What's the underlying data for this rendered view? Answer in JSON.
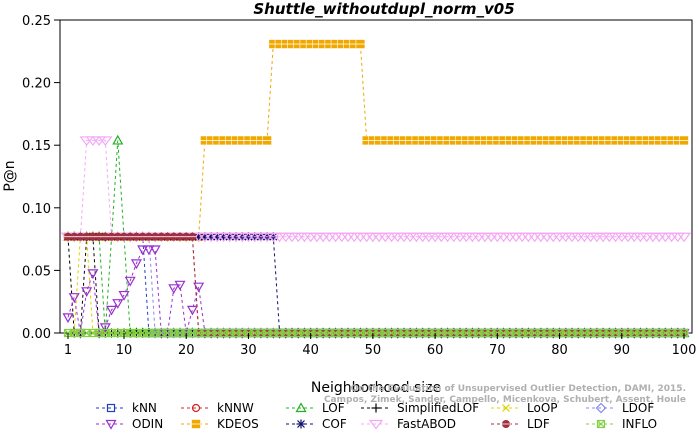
{
  "chart_data": {
    "type": "line",
    "title": "Shuttle_withoutdupl_norm_v05",
    "xlabel": "Neighborhood size",
    "ylabel": "P@n",
    "xlim": [
      1,
      100
    ],
    "ylim": [
      0,
      0.25
    ],
    "xticks": [
      1,
      10,
      20,
      30,
      40,
      50,
      60,
      70,
      80,
      90,
      100
    ],
    "yticks": [
      0.0,
      0.05,
      0.1,
      0.15,
      0.2,
      0.25
    ],
    "ytick_labels": [
      "0.00",
      "0.05",
      "0.10",
      "0.15",
      "0.20",
      "0.25"
    ],
    "grid": false,
    "legend_position": "bottom",
    "watermark": [
      "Campos, Zimek, Sander, Campello, Micenkova, Schubert, Assent, Houle",
      "On the Evaluation of Unsupervised Outlier Detection, DAMI, 2015."
    ],
    "series": [
      {
        "name": "kNN",
        "color": "#1f3fbf",
        "marker": "square",
        "points": [
          [
            1,
            0.0769
          ],
          [
            2,
            0.0769
          ],
          [
            3,
            0.0769
          ],
          [
            4,
            0.0769
          ],
          [
            5,
            0.0769
          ],
          [
            6,
            0.0769
          ],
          [
            7,
            0.0769
          ],
          [
            8,
            0.0769
          ],
          [
            9,
            0.0769
          ],
          [
            10,
            0.0769
          ],
          [
            11,
            0.0769
          ],
          [
            12,
            0.0769
          ],
          [
            13,
            0.0769
          ],
          [
            14,
            0.0
          ],
          [
            15,
            0.0
          ],
          [
            20,
            0.0
          ],
          [
            100,
            0.0
          ]
        ]
      },
      {
        "name": "kNNW",
        "color": "#d42020",
        "marker": "circle",
        "points": [
          [
            1,
            0.0769
          ],
          [
            5,
            0.0769
          ],
          [
            10,
            0.0769
          ],
          [
            15,
            0.0769
          ],
          [
            20,
            0.0769
          ],
          [
            21,
            0.0769
          ],
          [
            22,
            0.0
          ],
          [
            100,
            0.0
          ]
        ]
      },
      {
        "name": "LOF",
        "color": "#20b020",
        "marker": "triangle-up",
        "points": [
          [
            1,
            0.0769
          ],
          [
            2,
            0.0769
          ],
          [
            3,
            0.0769
          ],
          [
            4,
            0.0769
          ],
          [
            5,
            0.0769
          ],
          [
            6,
            0.0769
          ],
          [
            7,
            0.0
          ],
          [
            8,
            0.0769
          ],
          [
            9,
            0.1538
          ],
          [
            10,
            0.0769
          ],
          [
            11,
            0.0
          ],
          [
            12,
            0.0
          ],
          [
            100,
            0.0
          ]
        ]
      },
      {
        "name": "SimplifiedLOF",
        "color": "#000000",
        "marker": "plus",
        "points": [
          [
            1,
            0.0769
          ],
          [
            2,
            0.0
          ],
          [
            3,
            0.0
          ],
          [
            4,
            0.0769
          ],
          [
            5,
            0.0769
          ],
          [
            6,
            0.0
          ],
          [
            7,
            0.0
          ],
          [
            8,
            0.0
          ],
          [
            9,
            0.0
          ],
          [
            100,
            0.0
          ]
        ]
      },
      {
        "name": "LoOP",
        "color": "#e0d000",
        "marker": "x",
        "points": [
          [
            1,
            0.0
          ],
          [
            2,
            0.0
          ],
          [
            3,
            0.0769
          ],
          [
            4,
            0.0769
          ],
          [
            5,
            0.0
          ],
          [
            6,
            0.0
          ],
          [
            100,
            0.0
          ]
        ]
      },
      {
        "name": "LDOF",
        "color": "#8888ee",
        "marker": "diamond",
        "points": [
          [
            1,
            0.0769
          ],
          [
            2,
            0.0769
          ],
          [
            3,
            0.0769
          ],
          [
            4,
            0.0769
          ],
          [
            5,
            0.0769
          ],
          [
            6,
            0.0769
          ],
          [
            7,
            0.0769
          ],
          [
            8,
            0.0769
          ],
          [
            9,
            0.0769
          ],
          [
            10,
            0.0769
          ],
          [
            11,
            0.0769
          ],
          [
            12,
            0.0769
          ],
          [
            13,
            0.0769
          ],
          [
            14,
            0.0769
          ],
          [
            15,
            0.0
          ],
          [
            100,
            0.0
          ]
        ]
      },
      {
        "name": "ODIN",
        "color": "#9a30d0",
        "marker": "triangle-down",
        "points": [
          [
            1,
            0.0125
          ],
          [
            2,
            0.0286
          ],
          [
            3,
            0.0
          ],
          [
            4,
            0.0333
          ],
          [
            5,
            0.0476
          ],
          [
            6,
            0.0
          ],
          [
            7,
            0.0045
          ],
          [
            8,
            0.0185
          ],
          [
            9,
            0.0238
          ],
          [
            10,
            0.0303
          ],
          [
            11,
            0.0417
          ],
          [
            12,
            0.0556
          ],
          [
            13,
            0.0667
          ],
          [
            14,
            0.0667
          ],
          [
            15,
            0.0667
          ],
          [
            16,
            0.0
          ],
          [
            17,
            0.0
          ],
          [
            18,
            0.0357
          ],
          [
            19,
            0.0385
          ],
          [
            20,
            0.0
          ],
          [
            21,
            0.0185
          ],
          [
            22,
            0.037
          ],
          [
            23,
            0.0
          ],
          [
            100,
            0.0
          ]
        ]
      },
      {
        "name": "KDEOS",
        "color": "#f0a800",
        "marker": "square-filled",
        "points": [
          [
            1,
            0.0769
          ],
          [
            5,
            0.0769
          ],
          [
            10,
            0.0769
          ],
          [
            15,
            0.0769
          ],
          [
            20,
            0.0769
          ],
          [
            22,
            0.0769
          ],
          [
            23,
            0.1538
          ],
          [
            24,
            0.1538
          ],
          [
            25,
            0.1538
          ],
          [
            26,
            0.1538
          ],
          [
            27,
            0.1538
          ],
          [
            28,
            0.1538
          ],
          [
            29,
            0.1538
          ],
          [
            30,
            0.1538
          ],
          [
            31,
            0.1538
          ],
          [
            32,
            0.1538
          ],
          [
            33,
            0.1538
          ],
          [
            34,
            0.2308
          ],
          [
            35,
            0.2308
          ],
          [
            36,
            0.2308
          ],
          [
            37,
            0.2308
          ],
          [
            38,
            0.2308
          ],
          [
            39,
            0.2308
          ],
          [
            40,
            0.2308
          ],
          [
            41,
            0.2308
          ],
          [
            42,
            0.2308
          ],
          [
            43,
            0.2308
          ],
          [
            44,
            0.2308
          ],
          [
            45,
            0.2308
          ],
          [
            46,
            0.2308
          ],
          [
            47,
            0.2308
          ],
          [
            48,
            0.2308
          ],
          [
            49,
            0.1538
          ],
          [
            50,
            0.1538
          ],
          [
            55,
            0.1538
          ],
          [
            60,
            0.1538
          ],
          [
            65,
            0.1538
          ],
          [
            70,
            0.1538
          ],
          [
            75,
            0.1538
          ],
          [
            80,
            0.1538
          ],
          [
            85,
            0.1538
          ],
          [
            90,
            0.1538
          ],
          [
            95,
            0.1538
          ],
          [
            100,
            0.1538
          ]
        ]
      },
      {
        "name": "COF",
        "color": "#10106a",
        "marker": "asterisk",
        "points": [
          [
            1,
            0.0769
          ],
          [
            5,
            0.0769
          ],
          [
            10,
            0.0769
          ],
          [
            15,
            0.0769
          ],
          [
            20,
            0.0769
          ],
          [
            25,
            0.0769
          ],
          [
            30,
            0.0769
          ],
          [
            34,
            0.0769
          ],
          [
            35,
            0.0
          ],
          [
            100,
            0.0
          ]
        ]
      },
      {
        "name": "FastABOD",
        "color": "#f4a8f4",
        "marker": "triangle-down-wide",
        "points": [
          [
            1,
            0.0769
          ],
          [
            2,
            0.0769
          ],
          [
            3,
            0.0769
          ],
          [
            4,
            0.1538
          ],
          [
            5,
            0.1538
          ],
          [
            6,
            0.1538
          ],
          [
            7,
            0.1538
          ],
          [
            8,
            0.0769
          ],
          [
            10,
            0.0769
          ],
          [
            20,
            0.0769
          ],
          [
            30,
            0.0769
          ],
          [
            40,
            0.0769
          ],
          [
            50,
            0.0769
          ],
          [
            60,
            0.0769
          ],
          [
            70,
            0.0769
          ],
          [
            80,
            0.0769
          ],
          [
            90,
            0.0769
          ],
          [
            100,
            0.0769
          ]
        ]
      },
      {
        "name": "LDF",
        "color": "#a03040",
        "marker": "circle-filled",
        "points": [
          [
            1,
            0.0769
          ],
          [
            5,
            0.0769
          ],
          [
            10,
            0.0769
          ],
          [
            15,
            0.0769
          ],
          [
            20,
            0.0769
          ],
          [
            21,
            0.0769
          ],
          [
            22,
            0.0
          ],
          [
            100,
            0.0
          ]
        ]
      },
      {
        "name": "INFLO",
        "color": "#80d040",
        "marker": "square-x",
        "points": [
          [
            1,
            0.0
          ],
          [
            5,
            0.0
          ],
          [
            10,
            0.0
          ],
          [
            20,
            0.0
          ],
          [
            40,
            0.0
          ],
          [
            60,
            0.0
          ],
          [
            80,
            0.0
          ],
          [
            100,
            0.0
          ]
        ]
      }
    ]
  }
}
